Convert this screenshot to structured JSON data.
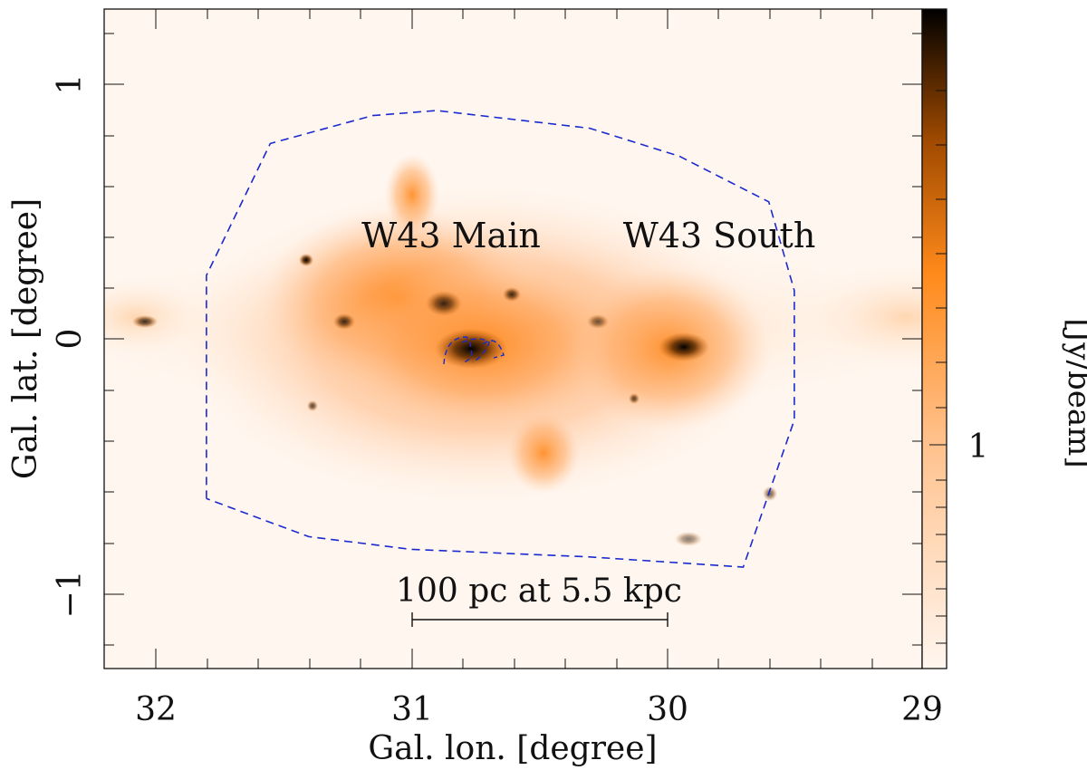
{
  "figure": {
    "xlabel": "Gal. lon. [degree]",
    "ylabel": "Gal. lat. [degree]",
    "colorbar_label": "[Jy/beam]",
    "colorbar_tick": "1",
    "x_ticks": [
      "32",
      "31",
      "30",
      "29"
    ],
    "y_ticks": [
      "1",
      "0",
      "−1"
    ],
    "region_labels": {
      "main": "W43 Main",
      "south": "W43 South"
    },
    "scalebar_label": "100 pc at 5.5 kpc",
    "colors": {
      "map_low": "#fff6ef",
      "map_mid": "#ff8c1a",
      "map_high": "#000000",
      "contour": "#1a2ad0"
    }
  },
  "chart_data": {
    "type": "heatmap",
    "title": "",
    "xlabel": "Gal. lon. [degree]",
    "ylabel": "Gal. lat. [degree]",
    "xlim": [
      32.2,
      29.0
    ],
    "ylim": [
      -1.3,
      1.3
    ],
    "colorbar": {
      "label": "[Jy/beam]",
      "ticks": [
        1
      ]
    },
    "annotations": [
      {
        "text": "W43 Main",
        "lon": 30.85,
        "lat": 0.4
      },
      {
        "text": "W43 South",
        "lon": 29.85,
        "lat": 0.4
      },
      {
        "text": "100 pc at 5.5 kpc",
        "lon": 30.5,
        "lat": -1.0
      }
    ],
    "scalebar_lon_range": [
      31.0,
      30.0
    ],
    "contour_lonlat": [
      [
        31.8,
        -0.63
      ],
      [
        31.8,
        0.25
      ],
      [
        31.55,
        0.77
      ],
      [
        31.15,
        0.88
      ],
      [
        30.9,
        0.9
      ],
      [
        30.3,
        0.83
      ],
      [
        29.95,
        0.72
      ],
      [
        29.6,
        0.54
      ],
      [
        29.5,
        0.19
      ],
      [
        29.5,
        -0.32
      ],
      [
        29.7,
        -0.9
      ],
      [
        30.3,
        -0.86
      ],
      [
        31.0,
        -0.83
      ],
      [
        31.4,
        -0.78
      ],
      [
        31.8,
        -0.63
      ]
    ]
  }
}
